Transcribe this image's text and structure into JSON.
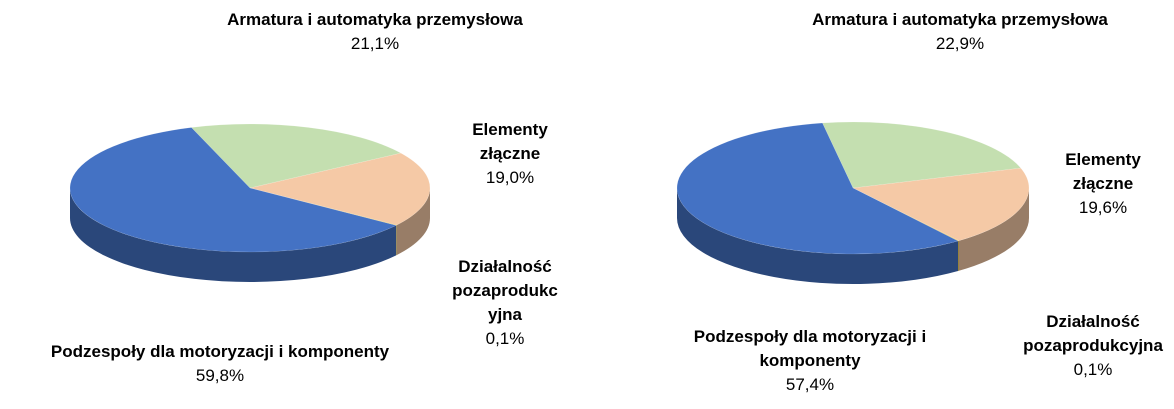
{
  "chart_data": [
    {
      "type": "pie",
      "categories": [
        "Armatura i automatyka przemysłowa",
        "Elementy złączne",
        "Działalność pozaprodukcyjna",
        "Podzespoły dla motoryzacji i komponenty"
      ],
      "values": [
        21.1,
        19.0,
        0.1,
        59.8
      ],
      "value_labels": [
        "21,1%",
        "19,0%",
        "0,1%",
        "59,8%"
      ],
      "colors": [
        "#c4dfb0",
        "#f5c9a6",
        "#e8c23c",
        "#4472c4"
      ]
    },
    {
      "type": "pie",
      "categories": [
        "Armatura i automatyka przemysłowa",
        "Elementy złączne",
        "Działalność pozaprodukcyjna",
        "Podzespoły dla motoryzacji i komponenty"
      ],
      "values": [
        22.9,
        19.6,
        0.1,
        57.4
      ],
      "value_labels": [
        "22,9%",
        "19,6%",
        "0,1%",
        "57,4%"
      ],
      "colors": [
        "#c4dfb0",
        "#f5c9a6",
        "#e8c23c",
        "#4472c4"
      ]
    }
  ]
}
